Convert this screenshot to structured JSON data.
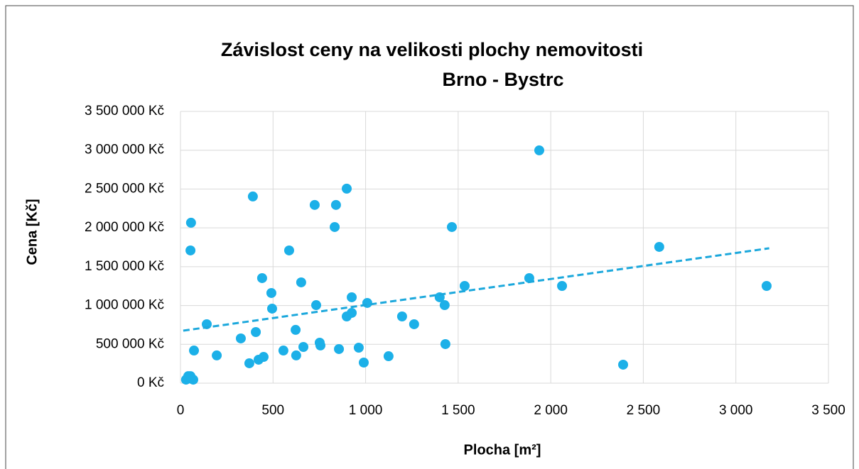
{
  "chart_data": {
    "type": "scatter",
    "title": "Závislost ceny na velikosti plochy nemovitosti",
    "subtitle": "Brno - Bystrc",
    "x_label": "Plocha [m²]",
    "y_label": "Cena [Kč]",
    "grid": true,
    "xlim": [
      0,
      3500
    ],
    "ylim": [
      0,
      3500000
    ],
    "xticks": [
      0,
      500,
      {
        "value": 1000,
        "label": "1 000"
      },
      {
        "value": 1500,
        "label": "1 500"
      },
      {
        "value": 2000,
        "label": "2 000"
      },
      {
        "value": 2500,
        "label": "2 500"
      },
      {
        "value": 3000,
        "label": "3 000"
      },
      {
        "value": 3500,
        "label": "3 500"
      }
    ],
    "yticks": [
      {
        "value": 0,
        "label": "0 Kč"
      },
      {
        "value": 500000,
        "label": "500 000 Kč"
      },
      {
        "value": 1000000,
        "label": "1 000 000 Kč"
      },
      {
        "value": 1500000,
        "label": "1 500 000 Kč"
      },
      {
        "value": 2000000,
        "label": "2 000 000 Kč"
      },
      {
        "value": 2500000,
        "label": "2 500 000 Kč"
      },
      {
        "value": 3000000,
        "label": "3 000 000 Kč"
      },
      {
        "value": 3500000,
        "label": "3 500 000 Kč"
      }
    ],
    "color": "#1cb0e8",
    "x": [
      30,
      42,
      54,
      61,
      69,
      57,
      54,
      73,
      142,
      196,
      326,
      372,
      391,
      407,
      422,
      441,
      449,
      491,
      495,
      556,
      587,
      622,
      625,
      652,
      664,
      725,
      733,
      752,
      756,
      840,
      833,
      856,
      898,
      898,
      925,
      925,
      963,
      990,
      1009,
      1124,
      1197,
      1262,
      1400,
      1427,
      1431,
      1466,
      1535,
      1884,
      1938,
      2061,
      2391,
      2586,
      3166
    ],
    "values": [
      45000,
      90000,
      90000,
      55000,
      45000,
      2066000,
      1709000,
      420000,
      759000,
      357000,
      576000,
      256000,
      2404000,
      658000,
      302000,
      1353000,
      338000,
      1161000,
      960000,
      420000,
      1709000,
      686000,
      357000,
      1298000,
      466000,
      2295000,
      1005000,
      521000,
      485000,
      2295000,
      2011000,
      439000,
      2505000,
      859000,
      1106000,
      905000,
      457000,
      265000,
      1033000,
      347000,
      859000,
      759000,
      1106000,
      1005000,
      503000,
      2011000,
      1252000,
      1353000,
      2998000,
      1252000,
      238000,
      1755000,
      1252000
    ],
    "trendline": {
      "color": "#1ca8dc",
      "x": [
        15,
        3180
      ],
      "values": [
        676000,
        1737000
      ]
    }
  }
}
